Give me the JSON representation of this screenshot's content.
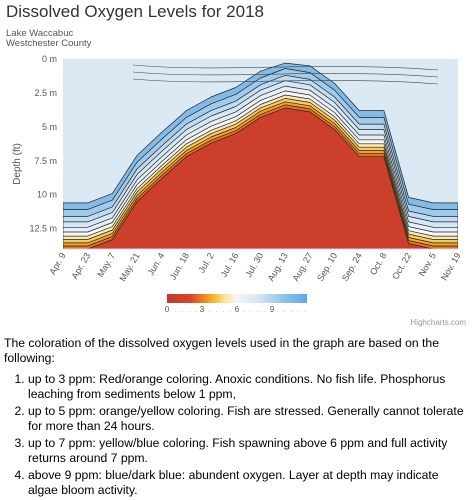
{
  "title": "Dissolved Oxygen Levels for 2018",
  "subtitle_lines": [
    "Lake Waccabuc",
    "Westchester County"
  ],
  "credit": "Highcharts.com",
  "chart_data": {
    "type": "heatmap",
    "ylabel": "Depth (ft)",
    "y_ticks": [
      "0 m",
      "2.5 m",
      "5 m",
      "7.5 m",
      "10 m",
      "12.5 m"
    ],
    "y_values": [
      0,
      2.5,
      5,
      7.5,
      10,
      12.5
    ],
    "ylim": [
      0,
      14
    ],
    "x_ticks": [
      "Apr. 9",
      "Apr. 23",
      "May. 7",
      "May. 21",
      "Jun. 4",
      "Jun. 18",
      "Jul. 2",
      "Jul. 16",
      "Jul. 30",
      "Aug. 13",
      "Aug. 27",
      "Sep. 10",
      "Sep. 24",
      "Oct. 8",
      "Oct. 22",
      "Nov. 5",
      "Nov. 19"
    ],
    "colorbar_labels": [
      "0",
      "3",
      "6",
      "9"
    ],
    "colorbar_range": [
      0,
      12
    ],
    "anoxic_depth_by_date": [
      14,
      14,
      13.3,
      10.5,
      8.8,
      7.2,
      6.2,
      5.5,
      4.3,
      3.6,
      3.9,
      5.2,
      7.2,
      7.2,
      13.6,
      14,
      14
    ],
    "stops": [
      {
        "ppm": 0,
        "color": "#c0392b"
      },
      {
        "ppm": 2,
        "color": "#d7452a"
      },
      {
        "ppm": 3,
        "color": "#f07d1a"
      },
      {
        "ppm": 4,
        "color": "#f6b733"
      },
      {
        "ppm": 5,
        "color": "#fbe4a0"
      },
      {
        "ppm": 6,
        "color": "#f4f6f8"
      },
      {
        "ppm": 8,
        "color": "#cfe4f4"
      },
      {
        "ppm": 10,
        "color": "#8fc2ea"
      },
      {
        "ppm": 12,
        "color": "#5fa7e0"
      }
    ]
  },
  "intro": "The coloration of the dissolved oxygen levels used in the graph are based on the following:",
  "legend_items": [
    "up to 3 ppm: Red/orange coloring. Anoxic conditions. No fish life. Phosphorus leaching from sediments below 1 ppm,",
    "up to 5 ppm: orange/yellow coloring. Fish are stressed. Generally cannot tolerate for more than 24 hours.",
    "up to 7 ppm: yellow/blue coloring. Fish spawning above 6 ppm and full activity returns around 7 ppm.",
    "above 9 ppm: blue/dark blue: abundent oxygen. Layer at depth may indicate algae bloom activity."
  ]
}
